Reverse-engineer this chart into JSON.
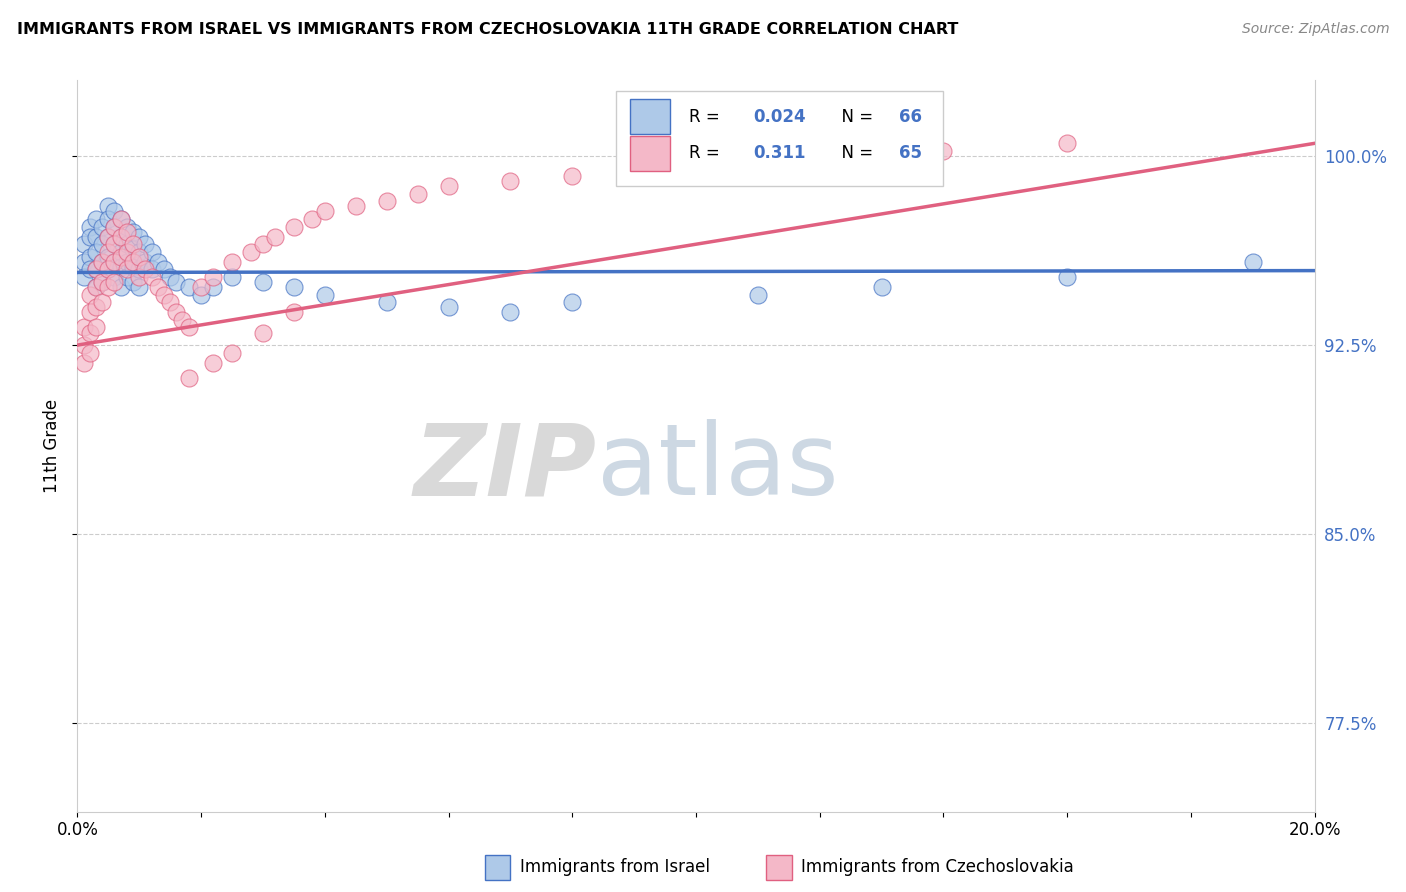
{
  "title": "IMMIGRANTS FROM ISRAEL VS IMMIGRANTS FROM CZECHOSLOVAKIA 11TH GRADE CORRELATION CHART",
  "source": "Source: ZipAtlas.com",
  "ylabel": "11th Grade",
  "xmin": 0.0,
  "xmax": 0.2,
  "ymin": 0.74,
  "ymax": 1.03,
  "R_israel": 0.024,
  "N_israel": 66,
  "R_czech": 0.311,
  "N_czech": 65,
  "legend_label_israel": "Immigrants from Israel",
  "legend_label_czech": "Immigrants from Czechoslovakia",
  "color_israel": "#aec9e8",
  "color_czech": "#f4b8c8",
  "line_color_israel": "#4472c4",
  "line_color_czech": "#e06080",
  "watermark_zip": "ZIP",
  "watermark_atlas": "atlas",
  "ytick_vals": [
    0.775,
    0.85,
    0.925,
    1.0
  ],
  "ytick_labels": [
    "77.5%",
    "85.0%",
    "92.5%",
    "100.0%"
  ],
  "israel_x": [
    0.001,
    0.001,
    0.001,
    0.002,
    0.002,
    0.002,
    0.002,
    0.003,
    0.003,
    0.003,
    0.003,
    0.003,
    0.004,
    0.004,
    0.004,
    0.004,
    0.005,
    0.005,
    0.005,
    0.005,
    0.005,
    0.006,
    0.006,
    0.006,
    0.006,
    0.006,
    0.007,
    0.007,
    0.007,
    0.007,
    0.007,
    0.008,
    0.008,
    0.008,
    0.008,
    0.009,
    0.009,
    0.009,
    0.009,
    0.01,
    0.01,
    0.01,
    0.01,
    0.011,
    0.011,
    0.012,
    0.012,
    0.013,
    0.014,
    0.015,
    0.016,
    0.018,
    0.02,
    0.022,
    0.025,
    0.03,
    0.035,
    0.04,
    0.05,
    0.06,
    0.07,
    0.08,
    0.11,
    0.13,
    0.16,
    0.19
  ],
  "israel_y": [
    0.965,
    0.958,
    0.952,
    0.972,
    0.968,
    0.96,
    0.955,
    0.975,
    0.968,
    0.962,
    0.955,
    0.948,
    0.972,
    0.965,
    0.958,
    0.95,
    0.98,
    0.975,
    0.968,
    0.96,
    0.955,
    0.978,
    0.972,
    0.965,
    0.958,
    0.952,
    0.975,
    0.968,
    0.962,
    0.956,
    0.948,
    0.972,
    0.965,
    0.958,
    0.952,
    0.97,
    0.963,
    0.956,
    0.95,
    0.968,
    0.962,
    0.955,
    0.948,
    0.965,
    0.958,
    0.962,
    0.955,
    0.958,
    0.955,
    0.952,
    0.95,
    0.948,
    0.945,
    0.948,
    0.952,
    0.95,
    0.948,
    0.945,
    0.942,
    0.94,
    0.938,
    0.942,
    0.945,
    0.948,
    0.952,
    0.958
  ],
  "czech_x": [
    0.001,
    0.001,
    0.001,
    0.002,
    0.002,
    0.002,
    0.002,
    0.003,
    0.003,
    0.003,
    0.003,
    0.004,
    0.004,
    0.004,
    0.005,
    0.005,
    0.005,
    0.005,
    0.006,
    0.006,
    0.006,
    0.006,
    0.007,
    0.007,
    0.007,
    0.008,
    0.008,
    0.008,
    0.009,
    0.009,
    0.01,
    0.01,
    0.011,
    0.012,
    0.013,
    0.014,
    0.015,
    0.016,
    0.017,
    0.018,
    0.02,
    0.022,
    0.025,
    0.028,
    0.03,
    0.032,
    0.035,
    0.038,
    0.04,
    0.045,
    0.05,
    0.055,
    0.06,
    0.07,
    0.08,
    0.09,
    0.1,
    0.12,
    0.14,
    0.16,
    0.018,
    0.022,
    0.025,
    0.03,
    0.035
  ],
  "czech_y": [
    0.932,
    0.925,
    0.918,
    0.945,
    0.938,
    0.93,
    0.922,
    0.955,
    0.948,
    0.94,
    0.932,
    0.958,
    0.95,
    0.942,
    0.968,
    0.962,
    0.955,
    0.948,
    0.972,
    0.965,
    0.958,
    0.95,
    0.975,
    0.968,
    0.96,
    0.97,
    0.962,
    0.955,
    0.965,
    0.958,
    0.96,
    0.952,
    0.955,
    0.952,
    0.948,
    0.945,
    0.942,
    0.938,
    0.935,
    0.932,
    0.948,
    0.952,
    0.958,
    0.962,
    0.965,
    0.968,
    0.972,
    0.975,
    0.978,
    0.98,
    0.982,
    0.985,
    0.988,
    0.99,
    0.992,
    0.995,
    0.998,
    1.0,
    1.002,
    1.005,
    0.912,
    0.918,
    0.922,
    0.93,
    0.938
  ]
}
